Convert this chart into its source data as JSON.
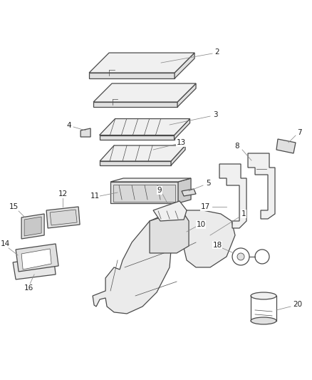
{
  "bg_color": "#ffffff",
  "line_color": "#4a4a4a",
  "fill_light": "#f0f0f0",
  "fill_mid": "#e0e0e0",
  "fill_dark": "#cccccc",
  "figsize": [
    4.38,
    5.33
  ],
  "dpi": 100
}
